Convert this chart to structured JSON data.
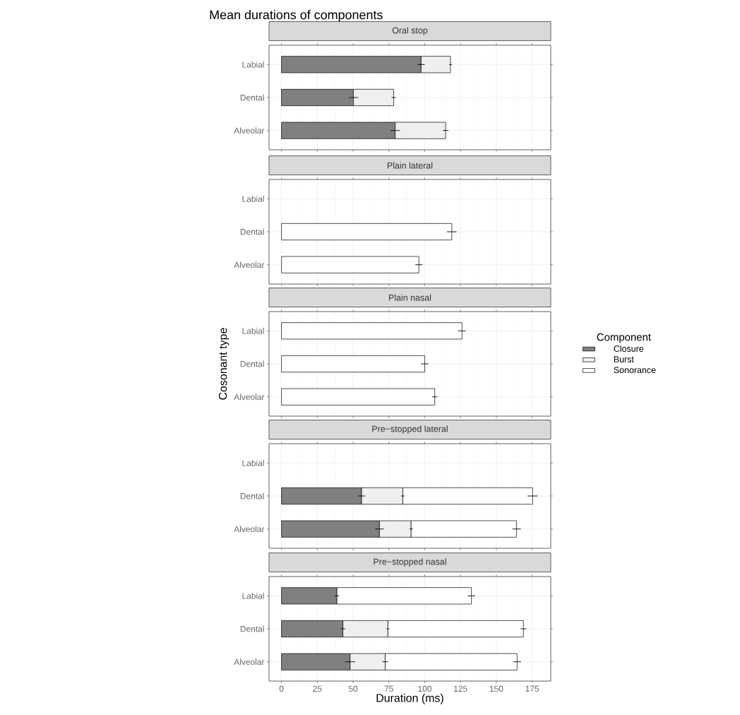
{
  "chart_data": [
    {
      "type": "bar",
      "orientation": "horizontal",
      "stacked": true,
      "title": "Mean durations of components",
      "subtitle": "Oral stop",
      "categories": [
        "Labial",
        "Dental",
        "Alveolar"
      ],
      "xlim": [
        -8.7,
        188
      ],
      "xticks": [
        0,
        25,
        50,
        75,
        100,
        125,
        150,
        175
      ],
      "grid": true,
      "tick_labels": "y",
      "series": [
        {
          "color": "#808080",
          "values": [
            97.5,
            50.2,
            79.4
          ],
          "errors": [
            2.5,
            3.3,
            3.3
          ]
        },
        {
          "color": "#eeefee",
          "values": [
            20.5,
            28.1,
            35.2
          ],
          "errors": [
            1,
            1.5,
            2
          ]
        },
        {
          "color": "#ffffff",
          "values": [
            null,
            null,
            null
          ],
          "errors": [
            null,
            null,
            null
          ]
        }
      ]
    },
    {
      "type": "bar",
      "orientation": "horizontal",
      "stacked": true,
      "subtitle": "Plain lateral",
      "categories": [
        "Labial",
        "Dental",
        "Alveolar"
      ],
      "xlim": [
        -8.7,
        188
      ],
      "xticks": [
        0,
        25,
        50,
        75,
        100,
        125,
        150,
        175
      ],
      "grid": true,
      "tick_labels": "y",
      "series": [
        {
          "color": "#808080",
          "values": [
            null,
            null,
            null
          ],
          "errors": [
            null,
            null,
            null
          ]
        },
        {
          "color": "#eeefee",
          "values": [
            null,
            null,
            null
          ],
          "errors": [
            null,
            null,
            null
          ]
        },
        {
          "color": "#ffffff",
          "values": [
            null,
            118.9,
            95.9
          ],
          "errors": [
            null,
            3.3,
            2.5
          ]
        }
      ]
    },
    {
      "type": "bar",
      "orientation": "horizontal",
      "stacked": true,
      "subtitle": "Plain nasal",
      "ylabel": "Cosonant type",
      "legend_title": "Component",
      "legend": "right",
      "categories": [
        "Labial",
        "Dental",
        "Alveolar"
      ],
      "xlim": [
        -8.7,
        188
      ],
      "xticks": [
        0,
        25,
        50,
        75,
        100,
        125,
        150,
        175
      ],
      "grid": true,
      "tick_labels": "y",
      "series": [
        {
          "name": "Closure",
          "color": "#808080",
          "values": [
            null,
            null,
            null
          ],
          "errors": [
            null,
            null,
            null
          ]
        },
        {
          "name": "Burst",
          "color": "#eeefee",
          "values": [
            null,
            null,
            null
          ],
          "errors": [
            null,
            null,
            null
          ]
        },
        {
          "name": "Sonorance",
          "color": "#ffffff",
          "values": [
            126,
            100,
            107
          ],
          "errors": [
            2.6,
            2.6,
            1.8
          ]
        }
      ]
    },
    {
      "type": "bar",
      "orientation": "horizontal",
      "stacked": true,
      "subtitle": "Pre−stopped lateral",
      "categories": [
        "Labial",
        "Dental",
        "Alveolar"
      ],
      "xlim": [
        -8.7,
        188
      ],
      "xticks": [
        0,
        25,
        50,
        75,
        100,
        125,
        150,
        175
      ],
      "grid": true,
      "tick_labels": "y",
      "series": [
        {
          "color": "#808080",
          "values": [
            null,
            55.9,
            68.4
          ],
          "errors": [
            null,
            2.6,
            3
          ]
        },
        {
          "color": "#eeefee",
          "values": [
            null,
            28.8,
            22.1
          ],
          "errors": [
            null,
            1.2,
            1.2
          ]
        },
        {
          "color": "#ffffff",
          "values": [
            null,
            90.6,
            73.6
          ],
          "errors": [
            null,
            3.5,
            2.9
          ]
        }
      ]
    },
    {
      "type": "bar",
      "orientation": "horizontal",
      "stacked": true,
      "subtitle": "Pre−stopped nasal",
      "xlabel": "Duration (ms)",
      "categories": [
        "Labial",
        "Dental",
        "Alveolar"
      ],
      "xlim": [
        -8.7,
        188
      ],
      "xticks": [
        0,
        25,
        50,
        75,
        100,
        125,
        150,
        175
      ],
      "grid": true,
      "series": [
        {
          "color": "#808080",
          "values": [
            38.7,
            42.9,
            47.9
          ],
          "errors": [
            1.6,
            1.6,
            3.5
          ]
        },
        {
          "color": "#eeefee",
          "values": [
            null,
            31.4,
            24.5
          ],
          "errors": [
            null,
            1,
            2
          ]
        },
        {
          "color": "#ffffff",
          "values": [
            93.9,
            94.6,
            92.1
          ],
          "errors": [
            2.6,
            2,
            2.7
          ]
        }
      ]
    }
  ]
}
